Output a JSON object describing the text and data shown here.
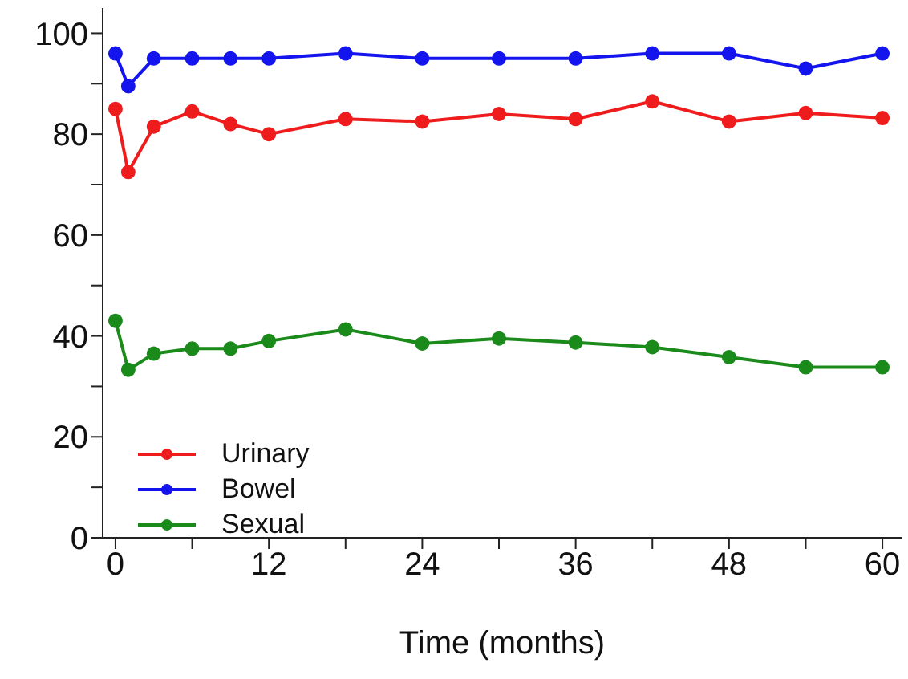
{
  "chart_data": {
    "type": "line",
    "xlabel": "Time (months)",
    "x": [
      0,
      1,
      3,
      6,
      9,
      12,
      18,
      24,
      30,
      36,
      42,
      48,
      54,
      60
    ],
    "series": [
      {
        "name": "Urinary",
        "color": "#ee1c1c",
        "values": [
          85,
          72.5,
          81.5,
          84.5,
          82,
          80,
          83,
          82.5,
          84,
          83,
          86.5,
          82.5,
          84.2,
          83.2
        ]
      },
      {
        "name": "Bowel",
        "color": "#1414ee",
        "values": [
          96,
          89.5,
          95,
          95,
          95,
          95,
          96,
          95,
          95,
          95,
          96,
          96,
          93,
          96
        ]
      },
      {
        "name": "Sexual",
        "color": "#1a8a1a",
        "values": [
          43,
          33.3,
          36.5,
          37.5,
          37.5,
          39,
          41.3,
          38.5,
          39.5,
          38.7,
          37.8,
          35.8,
          33.8,
          33.8
        ]
      }
    ],
    "xlim": [
      -1,
      61.5
    ],
    "ylim": [
      0,
      105
    ],
    "xticks": [
      0,
      {
        "value": 6,
        "label": null
      },
      12,
      {
        "value": 18,
        "label": null
      },
      24,
      {
        "value": 30,
        "label": null
      },
      36,
      {
        "value": 42,
        "label": null
      },
      48,
      {
        "value": 54,
        "label": null
      },
      60
    ],
    "yticks": [
      0,
      {
        "value": 10,
        "label": null
      },
      20,
      {
        "value": 30,
        "label": null
      },
      40,
      {
        "value": 50,
        "label": null
      },
      60,
      {
        "value": 70,
        "label": null
      },
      80,
      {
        "value": 90,
        "label": null
      },
      100
    ],
    "grid": false,
    "legend": "bottom left",
    "marker": "circle",
    "line_style": "solid"
  }
}
